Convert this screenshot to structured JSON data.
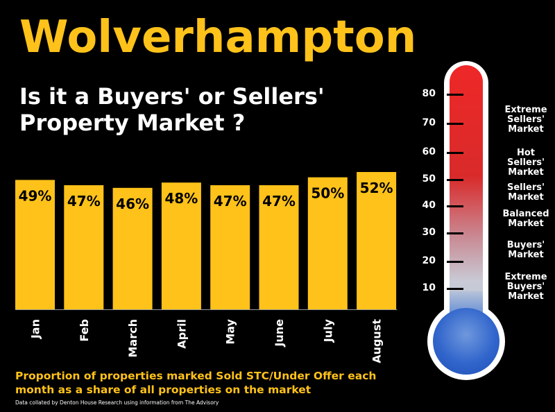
{
  "title": "Wolverhampton",
  "subtitle": "Is it a Buyers' or Sellers' Property Market ?",
  "caption": "Proportion of properties marked Sold STC/Under Offer each month as a share of all properties on the market",
  "source": "Data collated by Denton House Research using information from The Advisory",
  "colors": {
    "accent": "#ffc21a",
    "bar": "#ffc21a",
    "background": "#000000",
    "text": "#ffffff"
  },
  "chart_data": {
    "type": "bar",
    "categories": [
      "Jan",
      "Feb",
      "March",
      "April",
      "May",
      "June",
      "July",
      "August"
    ],
    "values": [
      49,
      47,
      46,
      48,
      47,
      47,
      50,
      52
    ],
    "value_labels": [
      "49%",
      "47%",
      "46%",
      "48%",
      "47%",
      "47%",
      "50%",
      "52%"
    ],
    "ylim": [
      0,
      52
    ],
    "grid": false,
    "legend": "none"
  },
  "thermometer": {
    "scale": [
      "80",
      "70",
      "60",
      "50",
      "40",
      "30",
      "20",
      "10"
    ],
    "zones": [
      "Extreme Sellers' Market",
      "Hot Sellers' Market",
      "Sellers' Market",
      "Balanced Market",
      "Buyers' Market",
      "Extreme Buyers' Market"
    ]
  }
}
